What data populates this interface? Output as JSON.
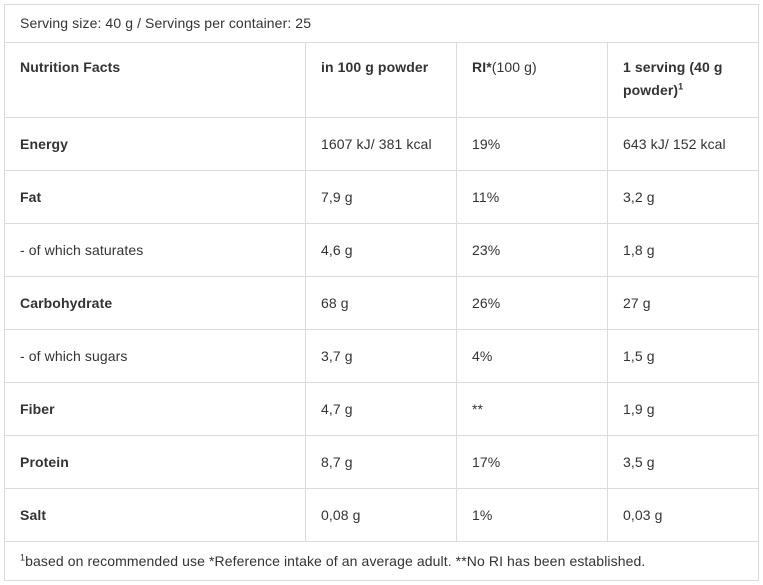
{
  "serving_line": "Serving size: 40 g / Servings per container: 25",
  "headers": {
    "col1": "Nutrition Facts",
    "col2": "in 100 g powder",
    "col3_bold": "RI*",
    "col3_rest": "(100 g)",
    "col4": "1 serving (40 g powder)",
    "col4_sup": "1"
  },
  "rows": [
    {
      "name": "Energy",
      "per100": "1607 kJ/ 381 kcal",
      "ri": "19%",
      "serving": "643 kJ/ 152 kcal",
      "bold": true
    },
    {
      "name": "Fat",
      "per100": "7,9 g",
      "ri": "11%",
      "serving": "3,2 g",
      "bold": true
    },
    {
      "name": "- of which saturates",
      "per100": "4,6 g",
      "ri": "23%",
      "serving": "1,8 g",
      "bold": false
    },
    {
      "name": "Carbohydrate",
      "per100": "68 g",
      "ri": "26%",
      "serving": "27 g",
      "bold": true
    },
    {
      "name": "- of which sugars",
      "per100": "3,7 g",
      "ri": "4%",
      "serving": "1,5 g",
      "bold": false
    },
    {
      "name": "Fiber",
      "per100": "4,7 g",
      "ri": "**",
      "serving": "1,9 g",
      "bold": true
    },
    {
      "name": "Protein",
      "per100": "8,7 g",
      "ri": "17%",
      "serving": "3,5 g",
      "bold": true
    },
    {
      "name": "Salt",
      "per100": "0,08 g",
      "ri": "1%",
      "serving": "0,03 g",
      "bold": true
    }
  ],
  "footnote_sup": "1",
  "footnote": "based on recommended use *Reference intake of an average adult. **No RI has been established."
}
